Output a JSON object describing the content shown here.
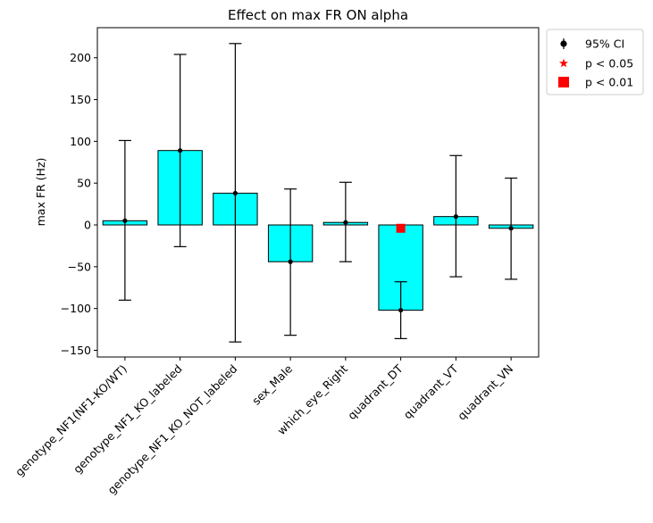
{
  "chart_data": {
    "type": "bar",
    "title": "Effect on max FR ON alpha",
    "xlabel": "",
    "ylabel": "max FR (Hz)",
    "ylim": [
      -158,
      236
    ],
    "yticks": [
      -150,
      -100,
      -50,
      0,
      50,
      100,
      150,
      200
    ],
    "grid": false,
    "legend_placement": "outside-top-right",
    "categories": [
      "genotype_NF1(NF1-KO/WT)",
      "genotype_NF1_KO_labeled",
      "genotype_NF1_KO_NOT_labeled",
      "sex_Male",
      "which_eye_Right",
      "quadrant_DT",
      "quadrant_VT",
      "quadrant_VN"
    ],
    "series": [
      {
        "type": "bar",
        "values": [
          5,
          89,
          38,
          -44,
          3,
          -102,
          10,
          -4
        ],
        "color": "#00ffff"
      },
      {
        "name": "95% CI",
        "type": "errorbar",
        "estimate": [
          5,
          89,
          38,
          -44,
          3,
          -102,
          10,
          -4
        ],
        "ci_low": [
          -90,
          -26,
          -140,
          -132,
          -44,
          -136,
          -62,
          -65
        ],
        "ci_high": [
          101,
          204,
          217,
          43,
          51,
          -68,
          83,
          56
        ],
        "color": "#000000"
      },
      {
        "name": "p < 0.05",
        "type": "marker",
        "marker": "star",
        "points": [],
        "color": "#ff0000"
      },
      {
        "name": "p < 0.01",
        "type": "marker",
        "marker": "square",
        "points": [
          {
            "category": "quadrant_DT",
            "y": -4
          }
        ],
        "color": "#ff0000"
      }
    ]
  }
}
